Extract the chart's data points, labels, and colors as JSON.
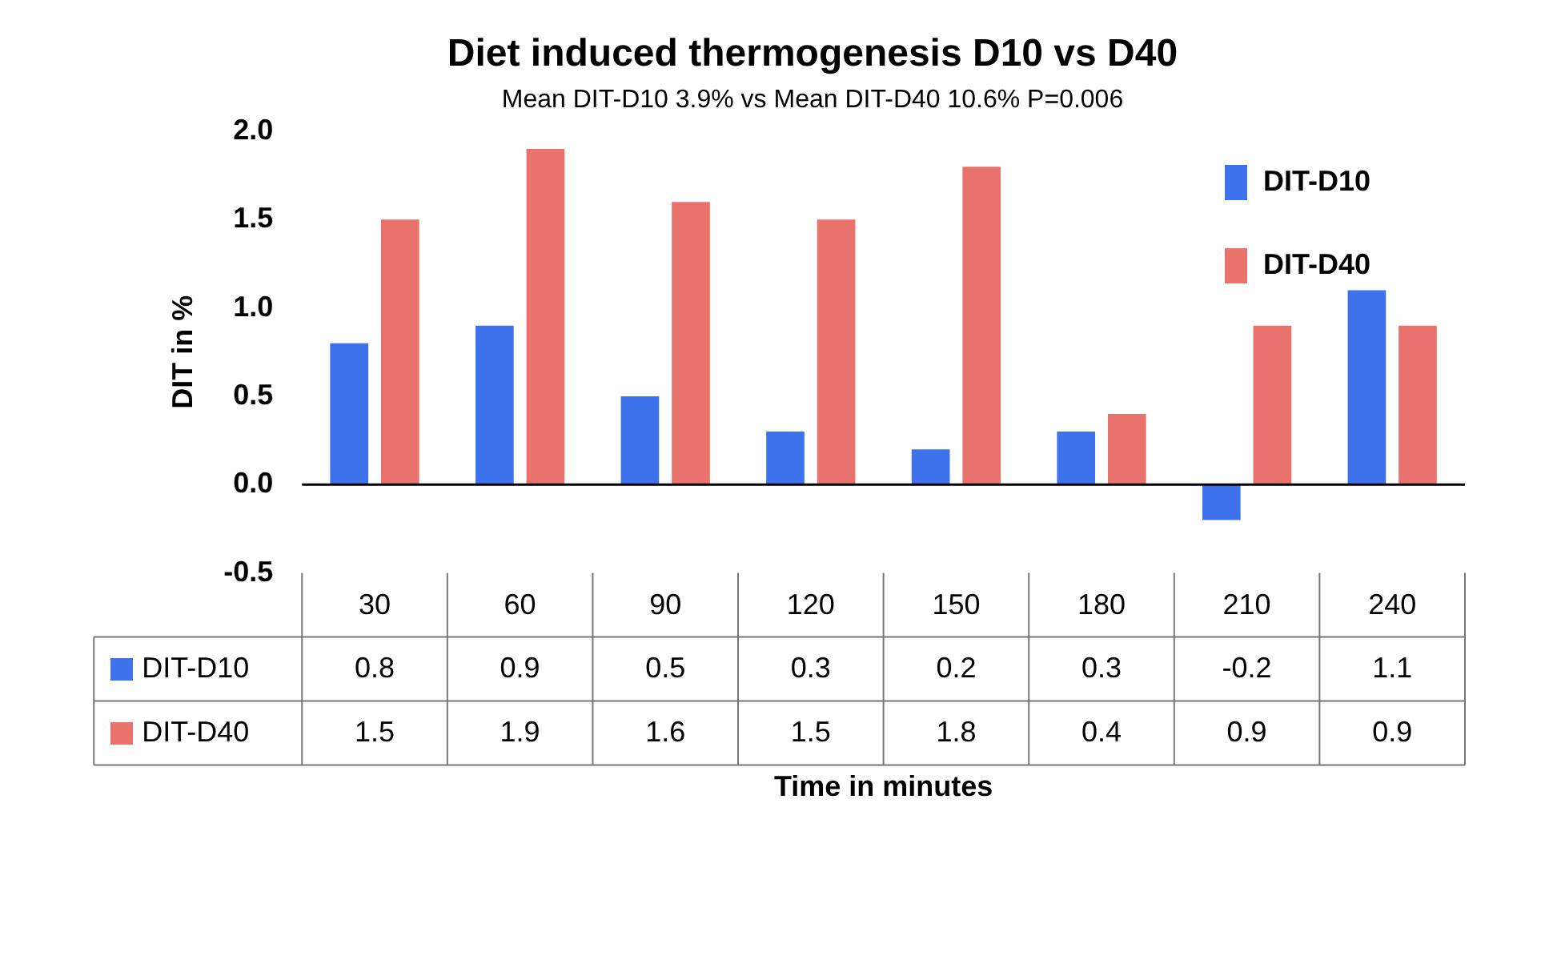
{
  "chart_data": {
    "type": "bar",
    "title": "Diet induced thermogenesis D10 vs D40",
    "subtitle": "Mean DIT-D10 3.9% vs Mean DIT-D40 10.6% P=0.006",
    "annotations": [
      "Time in minutes"
    ],
    "ylabel": "DIT in %",
    "categories": [
      "30",
      "60",
      "90",
      "120",
      "150",
      "180",
      "210",
      "240"
    ],
    "series": [
      {
        "name": "DIT-D10",
        "color": "#3d72ec",
        "values": [
          0.8,
          0.9,
          0.5,
          0.3,
          0.2,
          0.3,
          -0.2,
          1.1
        ]
      },
      {
        "name": "DIT-D40",
        "color": "#e9736c",
        "values": [
          1.5,
          1.9,
          1.6,
          1.5,
          1.8,
          0.4,
          0.9,
          0.9
        ]
      }
    ],
    "ylim": [
      -0.5,
      2.0
    ],
    "yticks": [
      -0.5,
      {
        "value": 0,
        "label": "0.0"
      },
      0.5,
      {
        "value": 1,
        "label": "1.0"
      },
      1.5,
      {
        "value": 2,
        "label": "2.0"
      }
    ],
    "ref_lines": [
      {
        "axis": "y",
        "value": 0,
        "color": "#000000"
      }
    ],
    "legend": "top right",
    "data_labels": true
  }
}
